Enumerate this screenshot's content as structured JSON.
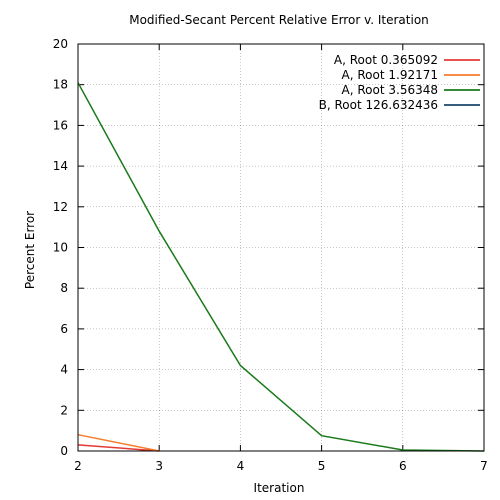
{
  "chart_data": {
    "type": "line",
    "title": "Modified-Secant Percent Relative Error v. Iteration",
    "xlabel": "Iteration",
    "ylabel": "Percent Error",
    "xlim": [
      2,
      7
    ],
    "ylim": [
      0,
      20
    ],
    "xticks": [
      2,
      3,
      4,
      5,
      6,
      7
    ],
    "yticks": [
      0,
      2,
      4,
      6,
      8,
      10,
      12,
      14,
      16,
      18,
      20
    ],
    "grid": "dotted",
    "legend_position": "top-right",
    "series": [
      {
        "name": "A, Root 0.365092",
        "color": "#e53935",
        "x": [
          2,
          3
        ],
        "y": [
          0.3,
          0.0
        ]
      },
      {
        "name": "A, Root 1.92171",
        "color": "#f57c2b",
        "x": [
          2,
          3
        ],
        "y": [
          0.8,
          0.0
        ]
      },
      {
        "name": "A, Root 3.56348",
        "color": "#1a7a1a",
        "x": [
          2,
          3,
          4,
          5,
          6,
          7
        ],
        "y": [
          18.1,
          10.8,
          4.2,
          0.75,
          0.05,
          0.0
        ]
      },
      {
        "name": "B, Root 126.632436",
        "color": "#17466e",
        "x": [],
        "y": []
      }
    ]
  }
}
